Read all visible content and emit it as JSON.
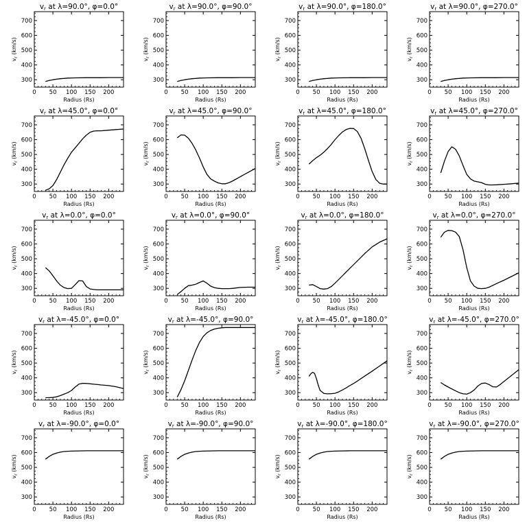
{
  "figure": {
    "xlabel": "Radius (Rs)",
    "ylabel_main": "v",
    "ylabel_sub": "r",
    "ylabel_unit": "(km/s)",
    "x_ticks": [
      "0",
      "50",
      "100",
      "150",
      "200"
    ],
    "y_ticks": [
      "300",
      "400",
      "500",
      "600",
      "700"
    ]
  },
  "chart_data": [
    {
      "type": "line",
      "title_lat": "90.0",
      "title_lon": "0.0",
      "xlim": [
        0,
        240
      ],
      "ylim": [
        250,
        760
      ],
      "x": [
        30,
        40,
        50,
        60,
        70,
        80,
        90,
        100,
        120,
        140,
        160,
        180,
        200,
        220,
        240
      ],
      "y": [
        288,
        295,
        300,
        304,
        307,
        309,
        311,
        312,
        313,
        314,
        314,
        314,
        315,
        315,
        315
      ]
    },
    {
      "type": "line",
      "title_lat": "90.0",
      "title_lon": "90.0",
      "xlim": [
        0,
        240
      ],
      "ylim": [
        250,
        760
      ],
      "x": [
        30,
        40,
        50,
        60,
        70,
        80,
        90,
        100,
        120,
        140,
        160,
        180,
        200,
        220,
        240
      ],
      "y": [
        288,
        295,
        300,
        304,
        307,
        309,
        311,
        312,
        313,
        314,
        314,
        314,
        315,
        315,
        315
      ]
    },
    {
      "type": "line",
      "title_lat": "90.0",
      "title_lon": "180.0",
      "xlim": [
        0,
        240
      ],
      "ylim": [
        250,
        760
      ],
      "x": [
        30,
        40,
        50,
        60,
        70,
        80,
        90,
        100,
        120,
        140,
        160,
        180,
        200,
        220,
        240
      ],
      "y": [
        288,
        295,
        300,
        304,
        307,
        309,
        311,
        312,
        313,
        314,
        314,
        314,
        315,
        315,
        315
      ]
    },
    {
      "type": "line",
      "title_lat": "90.0",
      "title_lon": "270.0",
      "xlim": [
        0,
        240
      ],
      "ylim": [
        250,
        760
      ],
      "x": [
        30,
        40,
        50,
        60,
        70,
        80,
        90,
        100,
        120,
        140,
        160,
        180,
        200,
        220,
        240
      ],
      "y": [
        288,
        295,
        300,
        304,
        307,
        309,
        311,
        312,
        313,
        314,
        314,
        314,
        315,
        315,
        315
      ]
    },
    {
      "type": "line",
      "title_lat": "45.0",
      "title_lon": "0.0",
      "xlim": [
        0,
        240
      ],
      "ylim": [
        250,
        760
      ],
      "x": [
        30,
        40,
        50,
        60,
        70,
        80,
        90,
        100,
        110,
        120,
        130,
        140,
        150,
        160,
        170,
        180,
        200,
        220,
        240
      ],
      "y": [
        258,
        268,
        290,
        330,
        380,
        430,
        475,
        515,
        545,
        575,
        605,
        630,
        650,
        658,
        660,
        660,
        664,
        668,
        672
      ]
    },
    {
      "type": "line",
      "title_lat": "45.0",
      "title_lon": "90.0",
      "xlim": [
        0,
        240
      ],
      "ylim": [
        250,
        760
      ],
      "x": [
        30,
        40,
        50,
        60,
        70,
        80,
        90,
        100,
        110,
        120,
        130,
        140,
        150,
        160,
        170,
        180,
        200,
        220,
        240
      ],
      "y": [
        612,
        632,
        630,
        610,
        575,
        530,
        475,
        415,
        365,
        335,
        320,
        308,
        302,
        302,
        310,
        322,
        350,
        378,
        405
      ]
    },
    {
      "type": "line",
      "title_lat": "45.0",
      "title_lon": "180.0",
      "xlim": [
        0,
        240
      ],
      "ylim": [
        250,
        760
      ],
      "x": [
        30,
        40,
        50,
        60,
        70,
        80,
        90,
        100,
        110,
        120,
        130,
        140,
        150,
        160,
        170,
        180,
        190,
        200,
        210,
        220,
        230,
        240
      ],
      "y": [
        435,
        458,
        478,
        495,
        515,
        540,
        568,
        600,
        628,
        652,
        668,
        676,
        675,
        655,
        610,
        540,
        460,
        385,
        330,
        305,
        300,
        300
      ]
    },
    {
      "type": "line",
      "title_lat": "45.0",
      "title_lon": "270.0",
      "xlim": [
        0,
        240
      ],
      "ylim": [
        250,
        760
      ],
      "x": [
        30,
        40,
        50,
        60,
        70,
        80,
        90,
        100,
        110,
        120,
        130,
        140,
        150,
        160,
        170,
        180,
        200,
        220,
        240
      ],
      "y": [
        375,
        455,
        520,
        552,
        535,
        490,
        425,
        365,
        335,
        320,
        315,
        310,
        298,
        294,
        294,
        295,
        298,
        302,
        306
      ]
    },
    {
      "type": "line",
      "title_lat": "0.0",
      "title_lon": "0.0",
      "xlim": [
        0,
        240
      ],
      "ylim": [
        250,
        760
      ],
      "x": [
        30,
        40,
        50,
        60,
        70,
        80,
        90,
        100,
        110,
        120,
        130,
        140,
        150,
        160,
        170,
        180,
        200,
        220,
        240
      ],
      "y": [
        440,
        418,
        385,
        350,
        322,
        305,
        298,
        300,
        325,
        352,
        350,
        312,
        296,
        292,
        290,
        290,
        290,
        290,
        290
      ]
    },
    {
      "type": "line",
      "title_lat": "0.0",
      "title_lon": "90.0",
      "xlim": [
        0,
        240
      ],
      "ylim": [
        250,
        760
      ],
      "x": [
        30,
        40,
        50,
        60,
        70,
        80,
        90,
        100,
        110,
        120,
        130,
        140,
        150,
        160,
        170,
        180,
        200,
        220,
        240
      ],
      "y": [
        258,
        278,
        300,
        318,
        322,
        328,
        340,
        350,
        335,
        315,
        305,
        300,
        298,
        298,
        298,
        300,
        306,
        308,
        308
      ]
    },
    {
      "type": "line",
      "title_lat": "0.0",
      "title_lon": "180.0",
      "xlim": [
        0,
        240
      ],
      "ylim": [
        250,
        760
      ],
      "x": [
        30,
        40,
        50,
        60,
        70,
        80,
        90,
        100,
        110,
        120,
        130,
        140,
        150,
        160,
        170,
        180,
        200,
        220,
        240
      ],
      "y": [
        322,
        325,
        312,
        298,
        295,
        298,
        312,
        335,
        360,
        385,
        410,
        435,
        460,
        485,
        510,
        535,
        580,
        612,
        635
      ]
    },
    {
      "type": "line",
      "title_lat": "0.0",
      "title_lon": "270.0",
      "xlim": [
        0,
        240
      ],
      "ylim": [
        250,
        760
      ],
      "x": [
        30,
        40,
        50,
        60,
        70,
        80,
        90,
        100,
        110,
        120,
        130,
        140,
        150,
        160,
        170,
        180,
        200,
        220,
        240
      ],
      "y": [
        645,
        680,
        692,
        690,
        680,
        650,
        560,
        440,
        350,
        315,
        300,
        298,
        300,
        308,
        320,
        332,
        355,
        380,
        405
      ]
    },
    {
      "type": "line",
      "title_lat": "-45.0",
      "title_lon": "0.0",
      "xlim": [
        0,
        240
      ],
      "ylim": [
        250,
        760
      ],
      "x": [
        30,
        40,
        50,
        60,
        70,
        80,
        90,
        100,
        110,
        120,
        130,
        140,
        150,
        160,
        170,
        180,
        200,
        220,
        240
      ],
      "y": [
        266,
        266,
        268,
        272,
        280,
        290,
        300,
        315,
        338,
        358,
        363,
        362,
        360,
        357,
        355,
        352,
        348,
        340,
        328
      ]
    },
    {
      "type": "line",
      "title_lat": "-45.0",
      "title_lon": "90.0",
      "xlim": [
        0,
        240
      ],
      "ylim": [
        250,
        760
      ],
      "x": [
        30,
        40,
        50,
        60,
        70,
        80,
        90,
        100,
        110,
        120,
        130,
        140,
        150,
        160,
        170,
        180,
        200,
        220,
        240
      ],
      "y": [
        270,
        320,
        380,
        450,
        520,
        585,
        640,
        680,
        705,
        720,
        730,
        735,
        738,
        740,
        740,
        740,
        740,
        740,
        740
      ]
    },
    {
      "type": "line",
      "title_lat": "-45.0",
      "title_lon": "180.0",
      "xlim": [
        0,
        240
      ],
      "ylim": [
        250,
        760
      ],
      "x": [
        30,
        35,
        40,
        45,
        50,
        55,
        60,
        70,
        80,
        90,
        100,
        110,
        120,
        130,
        140,
        150,
        160,
        170,
        180,
        200,
        220,
        240
      ],
      "y": [
        410,
        428,
        438,
        430,
        395,
        350,
        315,
        295,
        292,
        293,
        296,
        305,
        318,
        332,
        348,
        362,
        378,
        395,
        412,
        445,
        480,
        515
      ]
    },
    {
      "type": "line",
      "title_lat": "-45.0",
      "title_lon": "270.0",
      "xlim": [
        0,
        240
      ],
      "ylim": [
        250,
        760
      ],
      "x": [
        30,
        40,
        50,
        60,
        70,
        80,
        90,
        100,
        110,
        120,
        130,
        140,
        150,
        160,
        170,
        180,
        190,
        200,
        220,
        240
      ],
      "y": [
        368,
        352,
        338,
        325,
        312,
        300,
        292,
        290,
        300,
        318,
        345,
        362,
        365,
        355,
        340,
        338,
        355,
        375,
        415,
        455
      ]
    },
    {
      "type": "line",
      "title_lat": "-90.0",
      "title_lon": "0.0",
      "xlim": [
        0,
        240
      ],
      "ylim": [
        250,
        760
      ],
      "x": [
        30,
        40,
        50,
        60,
        70,
        80,
        90,
        100,
        120,
        140,
        160,
        180,
        200,
        220,
        240
      ],
      "y": [
        555,
        574,
        588,
        597,
        603,
        607,
        609,
        610,
        611,
        612,
        612,
        612,
        612,
        612,
        612
      ]
    },
    {
      "type": "line",
      "title_lat": "-90.0",
      "title_lon": "90.0",
      "xlim": [
        0,
        240
      ],
      "ylim": [
        250,
        760
      ],
      "x": [
        30,
        40,
        50,
        60,
        70,
        80,
        90,
        100,
        120,
        140,
        160,
        180,
        200,
        220,
        240
      ],
      "y": [
        555,
        574,
        588,
        597,
        603,
        607,
        609,
        610,
        611,
        612,
        612,
        612,
        612,
        612,
        612
      ]
    },
    {
      "type": "line",
      "title_lat": "-90.0",
      "title_lon": "180.0",
      "xlim": [
        0,
        240
      ],
      "ylim": [
        250,
        760
      ],
      "x": [
        30,
        40,
        50,
        60,
        70,
        80,
        90,
        100,
        120,
        140,
        160,
        180,
        200,
        220,
        240
      ],
      "y": [
        555,
        574,
        588,
        597,
        603,
        607,
        609,
        610,
        611,
        612,
        612,
        612,
        612,
        612,
        612
      ]
    },
    {
      "type": "line",
      "title_lat": "-90.0",
      "title_lon": "270.0",
      "xlim": [
        0,
        240
      ],
      "ylim": [
        250,
        760
      ],
      "x": [
        30,
        40,
        50,
        60,
        70,
        80,
        90,
        100,
        120,
        140,
        160,
        180,
        200,
        220,
        240
      ],
      "y": [
        555,
        574,
        588,
        597,
        603,
        607,
        609,
        610,
        611,
        612,
        612,
        612,
        612,
        612,
        612
      ]
    }
  ]
}
